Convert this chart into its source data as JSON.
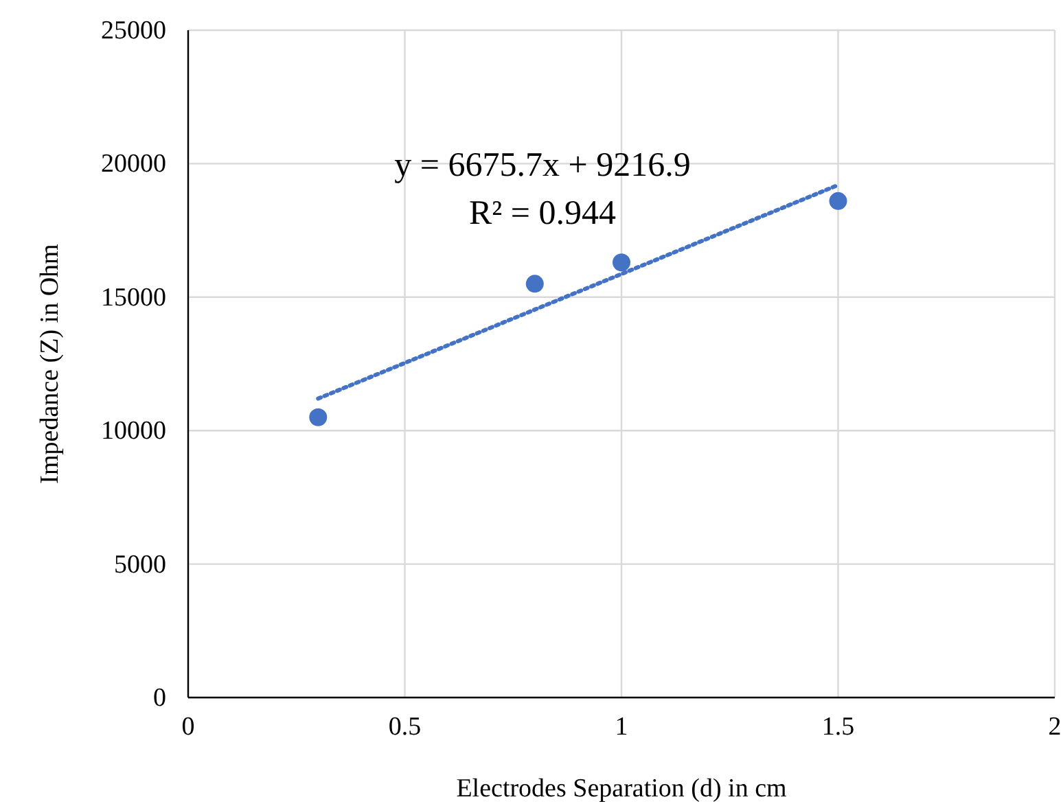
{
  "chart_data": {
    "type": "scatter",
    "xlabel": "Electrodes Separation (d) in cm",
    "ylabel": "Impedance  (Z) in Ohm",
    "xlim": [
      0,
      2
    ],
    "xticks": [
      0,
      0.5,
      1,
      1.5,
      2
    ],
    "ylim": [
      0,
      25000
    ],
    "yticks": [
      0,
      5000,
      10000,
      15000,
      20000,
      25000
    ],
    "grid": true,
    "annotations": [
      "y = 6675.7x + 9216.9",
      "R² = 0.944"
    ],
    "series": [
      {
        "color": "#4472c4",
        "marker": "circle",
        "x": [
          0.3,
          0.8,
          1,
          1.5
        ],
        "values": [
          10500,
          15500,
          16300,
          18600
        ]
      },
      {
        "type": "line",
        "color": "#4472c4",
        "marker": "none",
        "line_style": "dotted",
        "x": [
          0.3,
          1.5
        ],
        "values": [
          11200,
          19200
        ]
      }
    ]
  }
}
